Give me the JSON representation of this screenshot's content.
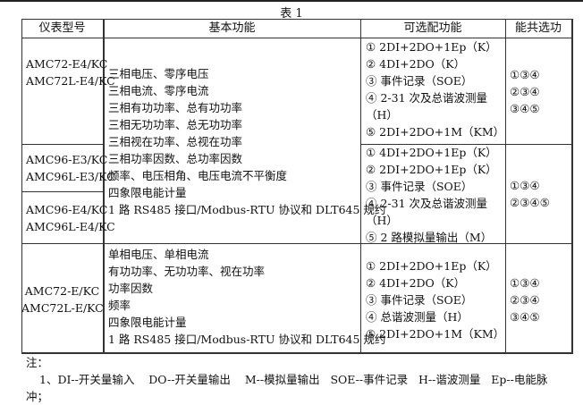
{
  "title": "表 1",
  "headers": [
    "仪表型号",
    "基本功能",
    "可选配功能",
    "能共选功"
  ],
  "groups": [
    {
      "models": [
        "AMC72-E4/KC",
        "AMC72L-E4/KC"
      ],
      "options": [
        "①  2DI+2DO+1Ep（K）",
        "②  4DI+2DO（K）",
        "③  事件记录（SOE）",
        "④  2-31 次及总谐波测量",
        "（H）",
        "⑤  2DI+2DO+1M（KM）"
      ],
      "combos": [
        "①③④",
        "②③④",
        "③④⑤"
      ]
    },
    {
      "models_a": [
        "AMC96-E3/KC",
        "AMC96L-E3/KC"
      ],
      "models_b": [
        "AMC96-E4/KC",
        "AMC96L-E4/KC"
      ],
      "options": [
        "①  4DI+2DO+1Ep（K）",
        "②  2DI+2DO+1Ep（K）",
        "③  事件记录（SOE）",
        "④  2-31 次及总谐波测量",
        "（H）",
        "⑤  2 路模拟量输出（M）"
      ],
      "combos": [
        "①③④",
        "②③④⑤"
      ]
    },
    {
      "models": [
        "AMC72-E/KC",
        "AMC72L-E/KC"
      ],
      "basic": [
        "单相电压、单相电流",
        "有功功率、无功功率、视在功率",
        "功率因数",
        "频率",
        "四象限电能计量",
        "1 路 RS485 接口/Modbus-RTU 协议和 DLT645 规约"
      ],
      "options": [
        "①  2DI+2DO+1Ep（K）",
        "②  4DI+2DO（K）",
        "③  事件记录（SOE）",
        "④  总谐波测量（H）",
        "⑤  2DI+2DO+1M（KM）"
      ],
      "combos": [
        "①③④",
        "②③④",
        "③④⑤"
      ]
    }
  ],
  "basic_shared": [
    "三相电压、零序电压",
    "三相电流、零序电流",
    "三相有功功率、总有功功率",
    "三相无功功率、总无功功率",
    "三相视在功率、总视在功率",
    "三相功率因数、总功率因数",
    "频率、电压相角、电压电流不平衡度",
    "四象限电能计量",
    "1 路 RS485 接口/Modbus-RTU 协议和 DLT645 规约"
  ],
  "notes": {
    "label": "注：",
    "line1": "1、DI--开关量输入    DO--开关量输出    M--模拟量输出   SOE--事件记录   H--谐波测量   Ep--电能脉",
    "line2": "冲；"
  }
}
